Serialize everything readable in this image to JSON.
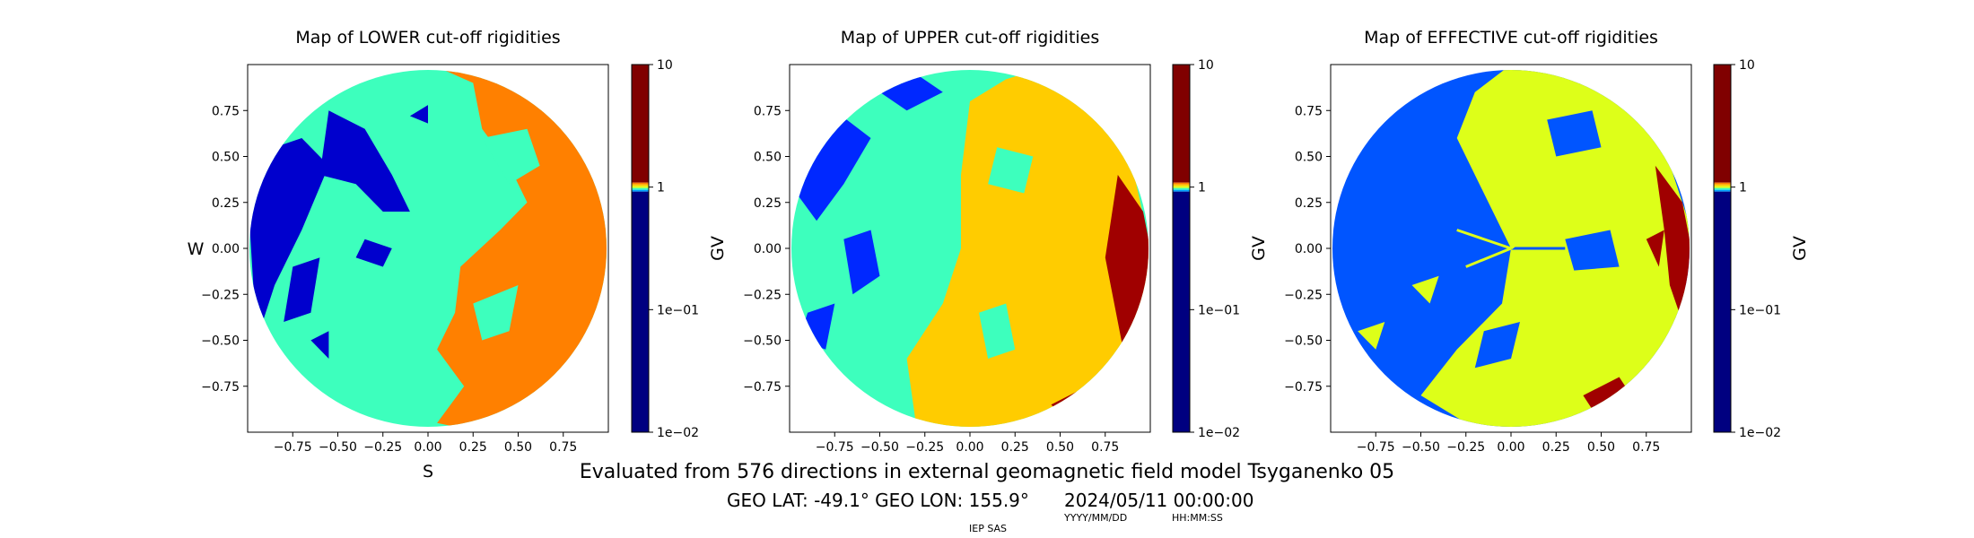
{
  "chart_data": [
    {
      "type": "heatmap",
      "title": "Map of LOWER cut-off rigidities",
      "xlabel": "S",
      "ylabel": "W",
      "xlim": [
        -1,
        1
      ],
      "ylim": [
        -1,
        1
      ],
      "x_ticks": [
        "−0.75",
        "−0.50",
        "−0.25",
        "0.00",
        "0.25",
        "0.50",
        "0.75"
      ],
      "y_ticks": [
        "0.75",
        "0.50",
        "0.25",
        "0.00",
        "−0.25",
        "−0.50",
        "−0.75"
      ],
      "base_color": "#3dffbd",
      "regions": [
        {
          "side": "right",
          "color": "#ff8000",
          "description": "east half of disk"
        },
        {
          "side": "left",
          "color": "#0000cd",
          "description": "west patches"
        }
      ],
      "colorbar": {
        "label": "GV",
        "scale": "log",
        "range": [
          0.01,
          10
        ],
        "ticks": [
          "10",
          "1",
          "1e−01",
          "1e−02"
        ],
        "colors": [
          "#000080",
          "#0000cd",
          "#3dffbd",
          "#ff8000",
          "#800000"
        ]
      }
    },
    {
      "type": "heatmap",
      "title": "Map of UPPER cut-off rigidities",
      "xlim": [
        -1,
        1
      ],
      "ylim": [
        -1,
        1
      ],
      "x_ticks": [
        "−0.75",
        "−0.50",
        "−0.25",
        "0.00",
        "0.25",
        "0.50",
        "0.75"
      ],
      "y_ticks": [
        "0.75",
        "0.50",
        "0.25",
        "0.00",
        "−0.25",
        "−0.50",
        "−0.75"
      ],
      "base_color": "#3dffbd",
      "regions": [
        {
          "side": "right",
          "color": "#ffcc00",
          "description": "east half of disk"
        },
        {
          "side": "left",
          "color": "#0028ff",
          "description": "west patches"
        },
        {
          "side": "right-edge",
          "color": "#a00000",
          "description": "east limb"
        }
      ],
      "colorbar": {
        "label": "GV",
        "scale": "log",
        "range": [
          0.01,
          10
        ],
        "ticks": [
          "10",
          "1",
          "1e−01",
          "1e−02"
        ]
      }
    },
    {
      "type": "heatmap",
      "title": "Map of EFFECTIVE cut-off rigidities",
      "xlim": [
        -1,
        1
      ],
      "ylim": [
        -1,
        1
      ],
      "x_ticks": [
        "−0.75",
        "−0.50",
        "−0.25",
        "0.00",
        "0.25",
        "0.50",
        "0.75"
      ],
      "y_ticks": [
        "0.75",
        "0.50",
        "0.25",
        "0.00",
        "−0.25",
        "−0.50",
        "−0.75"
      ],
      "base_color": "#0055ff",
      "regions": [
        {
          "side": "right",
          "color": "#ddff19",
          "description": "east half of disk"
        },
        {
          "side": "right-edge",
          "color": "#a00000",
          "description": "east limb"
        }
      ],
      "colorbar": {
        "label": "GV",
        "scale": "log",
        "range": [
          0.01,
          10
        ],
        "ticks": [
          "10",
          "1",
          "1e−01",
          "1e−02"
        ]
      }
    }
  ],
  "footer": {
    "caption": "Evaluated from 576 directions in external geomagnetic field model Tsyganenko 05",
    "geo": "GEO LAT: -49.1°  GEO LON: 155.9°",
    "datetime": "2024/05/11 00:00:00",
    "date_format": "YYYY/MM/DD",
    "time_format": "HH:MM:SS",
    "credit": "IEP SAS"
  }
}
